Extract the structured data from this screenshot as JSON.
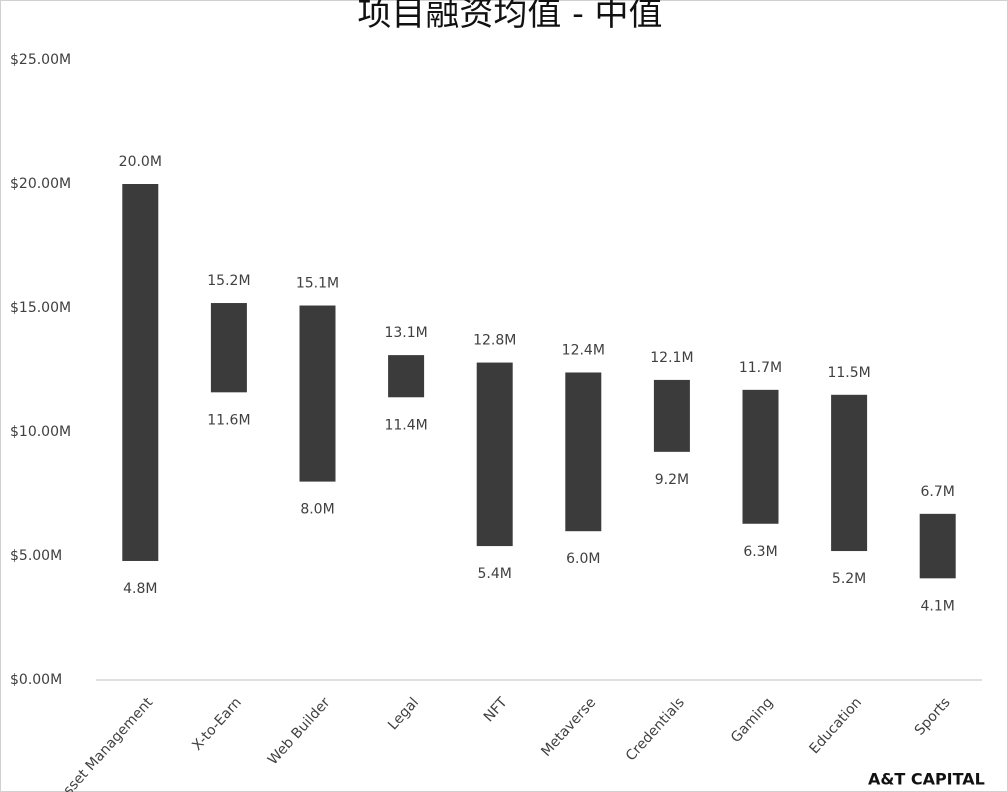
{
  "chart_data": {
    "type": "range-bar",
    "title": "项目融资均值 - 中值",
    "categories": [
      "Asset Management",
      "X-to-Earn",
      "Web Builder",
      "Legal",
      "NFT",
      "Metaverse",
      "Credentials",
      "Gaming",
      "Education",
      "Sports"
    ],
    "series": [
      {
        "values": [
          20.0,
          15.2,
          15.1,
          13.1,
          12.8,
          12.4,
          12.1,
          11.7,
          11.5,
          6.7
        ],
        "value_labels": [
          "20.0M",
          "15.2M",
          "15.1M",
          "13.1M",
          "12.8M",
          "12.4M",
          "12.1M",
          "11.7M",
          "11.5M",
          "6.7M"
        ]
      },
      {
        "values": [
          4.8,
          11.6,
          8.0,
          11.4,
          5.4,
          6.0,
          9.2,
          6.3,
          5.2,
          4.1
        ],
        "value_labels": [
          "4.8M",
          "11.6M",
          "8.0M",
          "11.4M",
          "5.4M",
          "6.0M",
          "9.2M",
          "6.3M",
          "5.2M",
          "4.1M"
        ]
      }
    ],
    "color": "#3b3b3b",
    "ylim": [
      0,
      25
    ],
    "yticks": [
      {
        "value": 0,
        "label": "$0.00M"
      },
      {
        "value": 5,
        "label": "$5.00M"
      },
      {
        "value": 10,
        "label": "$10.00M"
      },
      {
        "value": 15,
        "label": "$15.00M"
      },
      {
        "value": 20,
        "label": "$20.00M"
      },
      {
        "value": 25,
        "label": "$25.00M"
      }
    ],
    "grid": false,
    "logo": "A&T CAPITAL"
  }
}
